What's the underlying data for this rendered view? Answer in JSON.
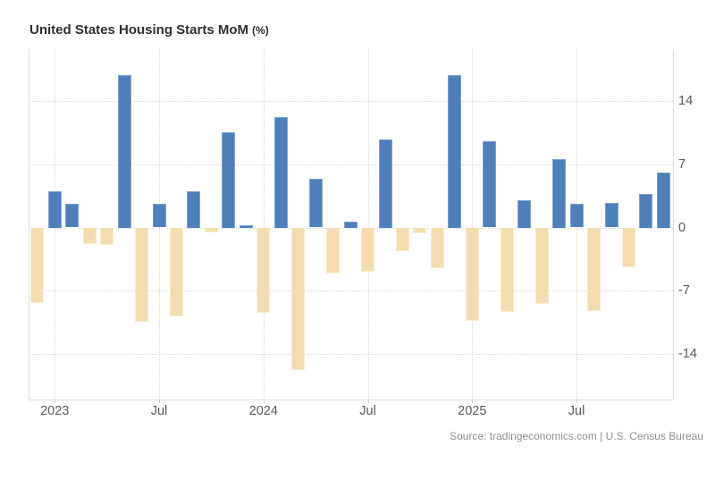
{
  "page": {
    "title": "United States Housing Starts MoM",
    "title_unit": "(%)",
    "source": "Source: tradingeconomics.com | U.S. Census Bureau"
  },
  "chart_data": {
    "type": "bar",
    "title": "United States Housing Starts MoM (%)",
    "xlabel": "",
    "ylabel": "",
    "unit": "%",
    "grid": true,
    "legend": false,
    "ylim": [
      -19.0,
      19.7
    ],
    "y_ticks": [
      14,
      7,
      0,
      -7,
      -14
    ],
    "x_ticks": [
      {
        "label": "2023",
        "index": 1
      },
      {
        "label": "Jul",
        "index": 7
      },
      {
        "label": "2024",
        "index": 13
      },
      {
        "label": "Jul",
        "index": 19
      },
      {
        "label": "2025",
        "index": 25
      },
      {
        "label": "Jul",
        "index": 31
      }
    ],
    "positive_color": "#4e7fba",
    "positive_edge_color": "#7fa3cf",
    "negative_color": "#f3ddb0",
    "negative_edge_color": "#f9ecd0",
    "categories": [
      "2022-12",
      "2023-01",
      "2023-02",
      "2023-03",
      "2023-04",
      "2023-05",
      "2023-06",
      "2023-07",
      "2023-08",
      "2023-09",
      "2023-10",
      "2023-11",
      "2023-12",
      "2024-01",
      "2024-02",
      "2024-03",
      "2024-04",
      "2024-05",
      "2024-06",
      "2024-07",
      "2024-08",
      "2024-09",
      "2024-10",
      "2024-11",
      "2024-12",
      "2025-01",
      "2025-02",
      "2025-03",
      "2025-04",
      "2025-05",
      "2025-06",
      "2025-07",
      "2025-08",
      "2025-09",
      "2025-10",
      "2025-11",
      "2025-12"
    ],
    "values": [
      -8.3,
      4.0,
      2.6,
      -1.8,
      -1.9,
      16.8,
      -10.4,
      2.6,
      -9.8,
      4.0,
      -0.5,
      10.5,
      0.3,
      -9.4,
      12.2,
      -15.7,
      5.4,
      -5.1,
      0.7,
      -4.9,
      9.7,
      -2.6,
      -0.6,
      -4.5,
      16.8,
      -10.3,
      9.5,
      -9.3,
      3.0,
      -8.4,
      7.6,
      2.6,
      -9.2,
      2.7,
      -4.4,
      3.7,
      6.1
    ]
  }
}
